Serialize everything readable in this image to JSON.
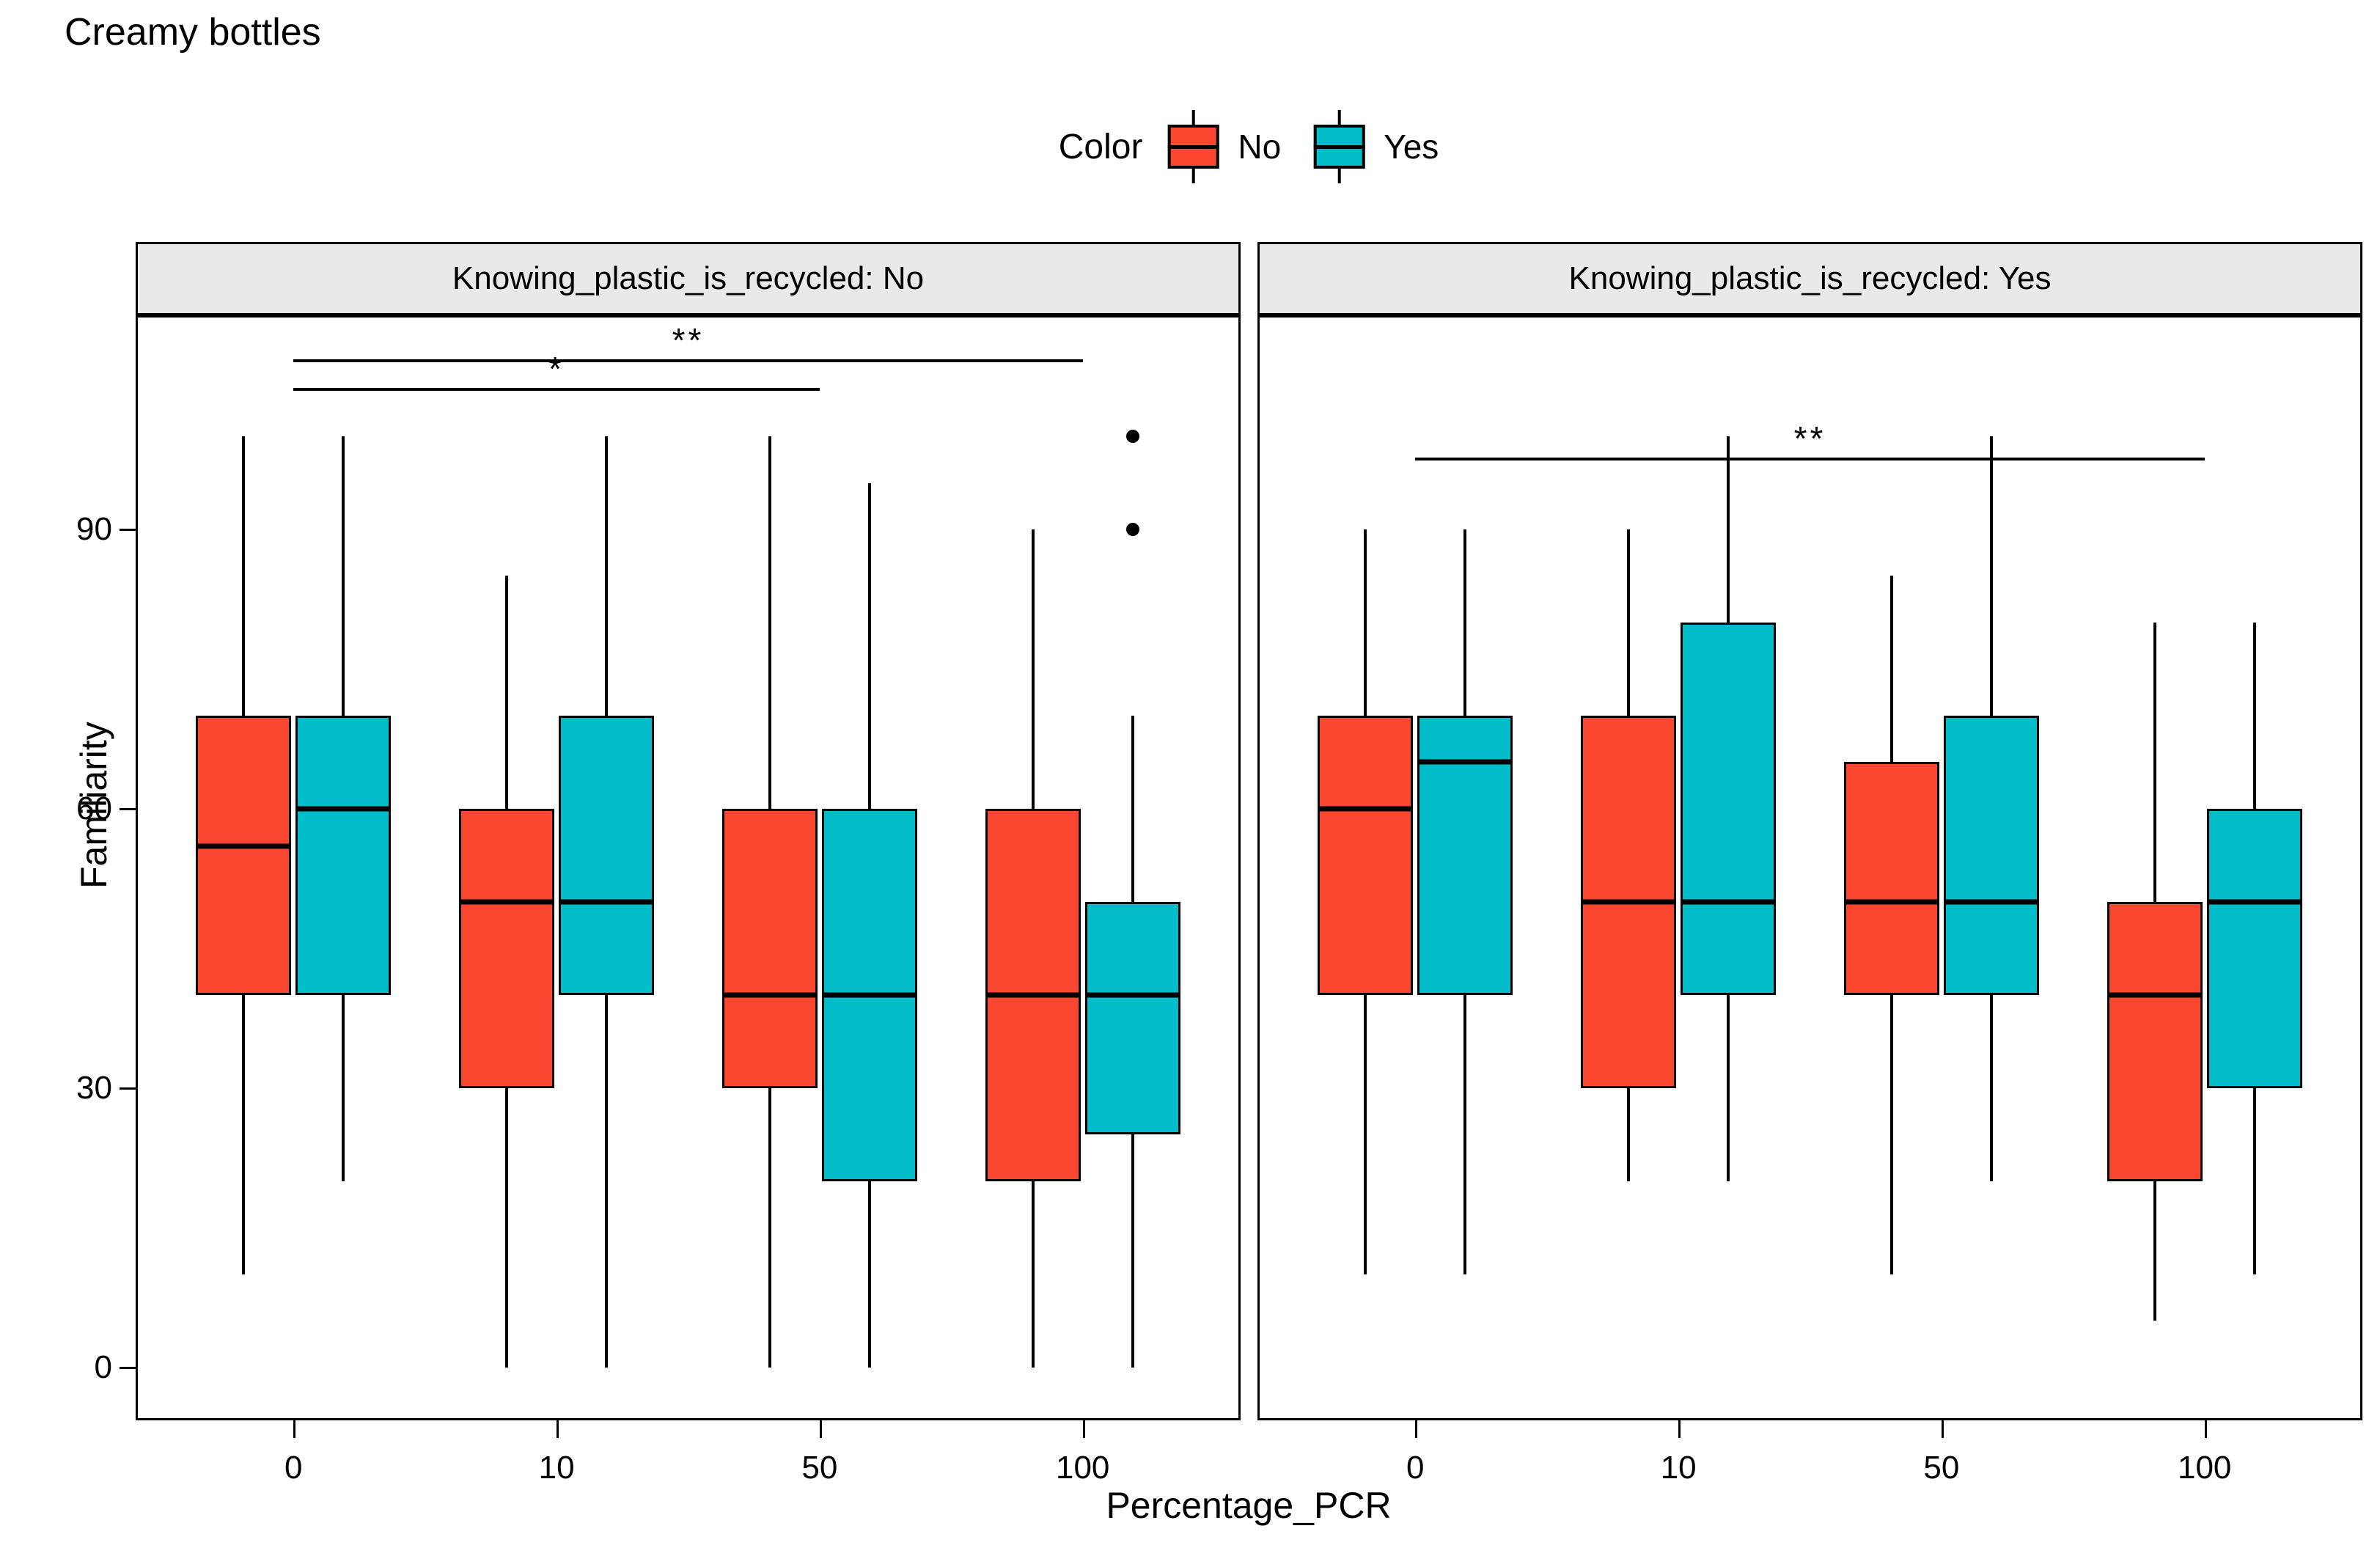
{
  "chart_data": {
    "type": "boxplot",
    "title": "Creamy bottles",
    "xlabel": "Percentage_PCR",
    "ylabel": "Familiarity",
    "y_ticks": [
      0,
      30,
      60,
      90
    ],
    "ylim": [
      -5.7,
      113
    ],
    "grid": "off",
    "categories": [
      "0",
      "10",
      "50",
      "100"
    ],
    "legend": {
      "title": "Color",
      "position": "top",
      "entries": [
        {
          "label": "No",
          "color": "#FC4730"
        },
        {
          "label": "Yes",
          "color": "#00BDC9"
        }
      ]
    },
    "facets": [
      {
        "label": "Knowing_plastic_is_recycled: No",
        "groups": [
          {
            "category": "0",
            "no": {
              "whisker_low": 10,
              "q1": 40,
              "median": 56,
              "q3": 70,
              "whisker_high": 100,
              "outliers": []
            },
            "yes": {
              "whisker_low": 20,
              "q1": 40,
              "median": 60,
              "q3": 70,
              "whisker_high": 100,
              "outliers": []
            }
          },
          {
            "category": "10",
            "no": {
              "whisker_low": 0,
              "q1": 30,
              "median": 50,
              "q3": 60,
              "whisker_high": 85,
              "outliers": []
            },
            "yes": {
              "whisker_low": 0,
              "q1": 40,
              "median": 50,
              "q3": 70,
              "whisker_high": 100,
              "outliers": []
            }
          },
          {
            "category": "50",
            "no": {
              "whisker_low": 0,
              "q1": 30,
              "median": 40,
              "q3": 60,
              "whisker_high": 100,
              "outliers": []
            },
            "yes": {
              "whisker_low": 0,
              "q1": 20,
              "median": 40,
              "q3": 60,
              "whisker_high": 95,
              "outliers": []
            }
          },
          {
            "category": "100",
            "no": {
              "whisker_low": 0,
              "q1": 20,
              "median": 40,
              "q3": 60,
              "whisker_high": 90,
              "outliers": []
            },
            "yes": {
              "whisker_low": 0,
              "q1": 25,
              "median": 40,
              "q3": 50,
              "whisker_high": 70,
              "outliers": [
                90,
                100
              ]
            }
          }
        ],
        "significance": [
          {
            "from": 0,
            "to": 3,
            "label": "**",
            "y": 108.3
          },
          {
            "from": 0,
            "to": 2,
            "label": "*",
            "y": 105.2
          }
        ]
      },
      {
        "label": "Knowing_plastic_is_recycled: Yes",
        "groups": [
          {
            "category": "0",
            "no": {
              "whisker_low": 10,
              "q1": 40,
              "median": 60,
              "q3": 70,
              "whisker_high": 90,
              "outliers": []
            },
            "yes": {
              "whisker_low": 10,
              "q1": 40,
              "median": 65,
              "q3": 70,
              "whisker_high": 90,
              "outliers": []
            }
          },
          {
            "category": "10",
            "no": {
              "whisker_low": 20,
              "q1": 30,
              "median": 50,
              "q3": 70,
              "whisker_high": 90,
              "outliers": []
            },
            "yes": {
              "whisker_low": 20,
              "q1": 40,
              "median": 50,
              "q3": 80,
              "whisker_high": 100,
              "outliers": []
            }
          },
          {
            "category": "50",
            "no": {
              "whisker_low": 10,
              "q1": 40,
              "median": 50,
              "q3": 65,
              "whisker_high": 85,
              "outliers": []
            },
            "yes": {
              "whisker_low": 20,
              "q1": 40,
              "median": 50,
              "q3": 70,
              "whisker_high": 100,
              "outliers": []
            }
          },
          {
            "category": "100",
            "no": {
              "whisker_low": 5,
              "q1": 20,
              "median": 40,
              "q3": 50,
              "whisker_high": 80,
              "outliers": []
            },
            "yes": {
              "whisker_low": 10,
              "q1": 30,
              "median": 50,
              "q3": 60,
              "whisker_high": 80,
              "outliers": []
            }
          }
        ],
        "significance": [
          {
            "from": 0,
            "to": 3,
            "label": "**",
            "y": 97.7
          }
        ]
      }
    ]
  }
}
